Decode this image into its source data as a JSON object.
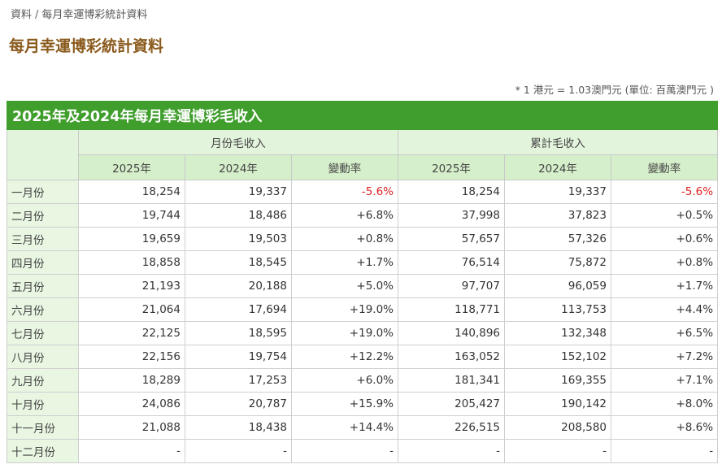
{
  "breadcrumb": {
    "root": "資料",
    "separator": "/",
    "current": "每月幸運博彩統計資料"
  },
  "page_title": "每月幸運博彩統計資料",
  "note": "* 1 港元 = 1.03澳門元 (單位: 百萬澳門元  )",
  "table": {
    "caption": "2025年及2024年每月幸運博彩毛收入",
    "group_headers": [
      "月份毛收入",
      "累計毛收入"
    ],
    "sub_headers": [
      "2025年",
      "2024年",
      "變動率",
      "2025年",
      "2024年",
      "變動率"
    ],
    "rows": [
      {
        "month": "一月份",
        "m2025": "18,254",
        "m2024": "19,337",
        "mchg": "-5.6%",
        "c2025": "18,254",
        "c2024": "19,337",
        "cchg": "-5.6%"
      },
      {
        "month": "二月份",
        "m2025": "19,744",
        "m2024": "18,486",
        "mchg": "+6.8%",
        "c2025": "37,998",
        "c2024": "37,823",
        "cchg": "+0.5%"
      },
      {
        "month": "三月份",
        "m2025": "19,659",
        "m2024": "19,503",
        "mchg": "+0.8%",
        "c2025": "57,657",
        "c2024": "57,326",
        "cchg": "+0.6%"
      },
      {
        "month": "四月份",
        "m2025": "18,858",
        "m2024": "18,545",
        "mchg": "+1.7%",
        "c2025": "76,514",
        "c2024": "75,872",
        "cchg": "+0.8%"
      },
      {
        "month": "五月份",
        "m2025": "21,193",
        "m2024": "20,188",
        "mchg": "+5.0%",
        "c2025": "97,707",
        "c2024": "96,059",
        "cchg": "+1.7%"
      },
      {
        "month": "六月份",
        "m2025": "21,064",
        "m2024": "17,694",
        "mchg": "+19.0%",
        "c2025": "118,771",
        "c2024": "113,753",
        "cchg": "+4.4%"
      },
      {
        "month": "七月份",
        "m2025": "22,125",
        "m2024": "18,595",
        "mchg": "+19.0%",
        "c2025": "140,896",
        "c2024": "132,348",
        "cchg": "+6.5%"
      },
      {
        "month": "八月份",
        "m2025": "22,156",
        "m2024": "19,754",
        "mchg": "+12.2%",
        "c2025": "163,052",
        "c2024": "152,102",
        "cchg": "+7.2%"
      },
      {
        "month": "九月份",
        "m2025": "18,289",
        "m2024": "17,253",
        "mchg": "+6.0%",
        "c2025": "181,341",
        "c2024": "169,355",
        "cchg": "+7.1%"
      },
      {
        "month": "十月份",
        "m2025": "24,086",
        "m2024": "20,787",
        "mchg": "+15.9%",
        "c2025": "205,427",
        "c2024": "190,142",
        "cchg": "+8.0%"
      },
      {
        "month": "十一月份",
        "m2025": "21,088",
        "m2024": "18,438",
        "mchg": "+14.4%",
        "c2025": "226,515",
        "c2024": "208,580",
        "cchg": "+8.6%"
      },
      {
        "month": "十二月份",
        "m2025": "-",
        "m2024": "-",
        "mchg": "-",
        "c2025": "-",
        "c2024": "-",
        "cchg": "-"
      }
    ]
  },
  "colors": {
    "title_brown": "#8a5a1c",
    "caption_green": "#3f9e2c",
    "header_light_green": "#e3f4dc",
    "negative_red": "#e02020"
  }
}
